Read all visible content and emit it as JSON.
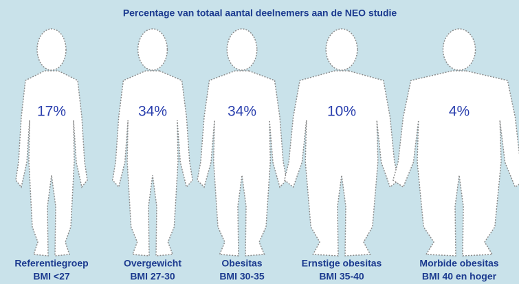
{
  "title": "Percentage van totaal aantal deelnemers aan de NEO studie",
  "figures": [
    {
      "percentage": "17%",
      "label": "Referentiegroep",
      "bmi": "BMI <27"
    },
    {
      "percentage": "34%",
      "label": "Overgewicht",
      "bmi": "BMI 27-30"
    },
    {
      "percentage": "34%",
      "label": "Obesitas",
      "bmi": "BMI 30-35"
    },
    {
      "percentage": "10%",
      "label": "Ernstige obesitas",
      "bmi": "BMI 35-40"
    },
    {
      "percentage": "4%",
      "label": "Morbide obesitas",
      "bmi": "BMI 40 en hoger"
    }
  ]
}
